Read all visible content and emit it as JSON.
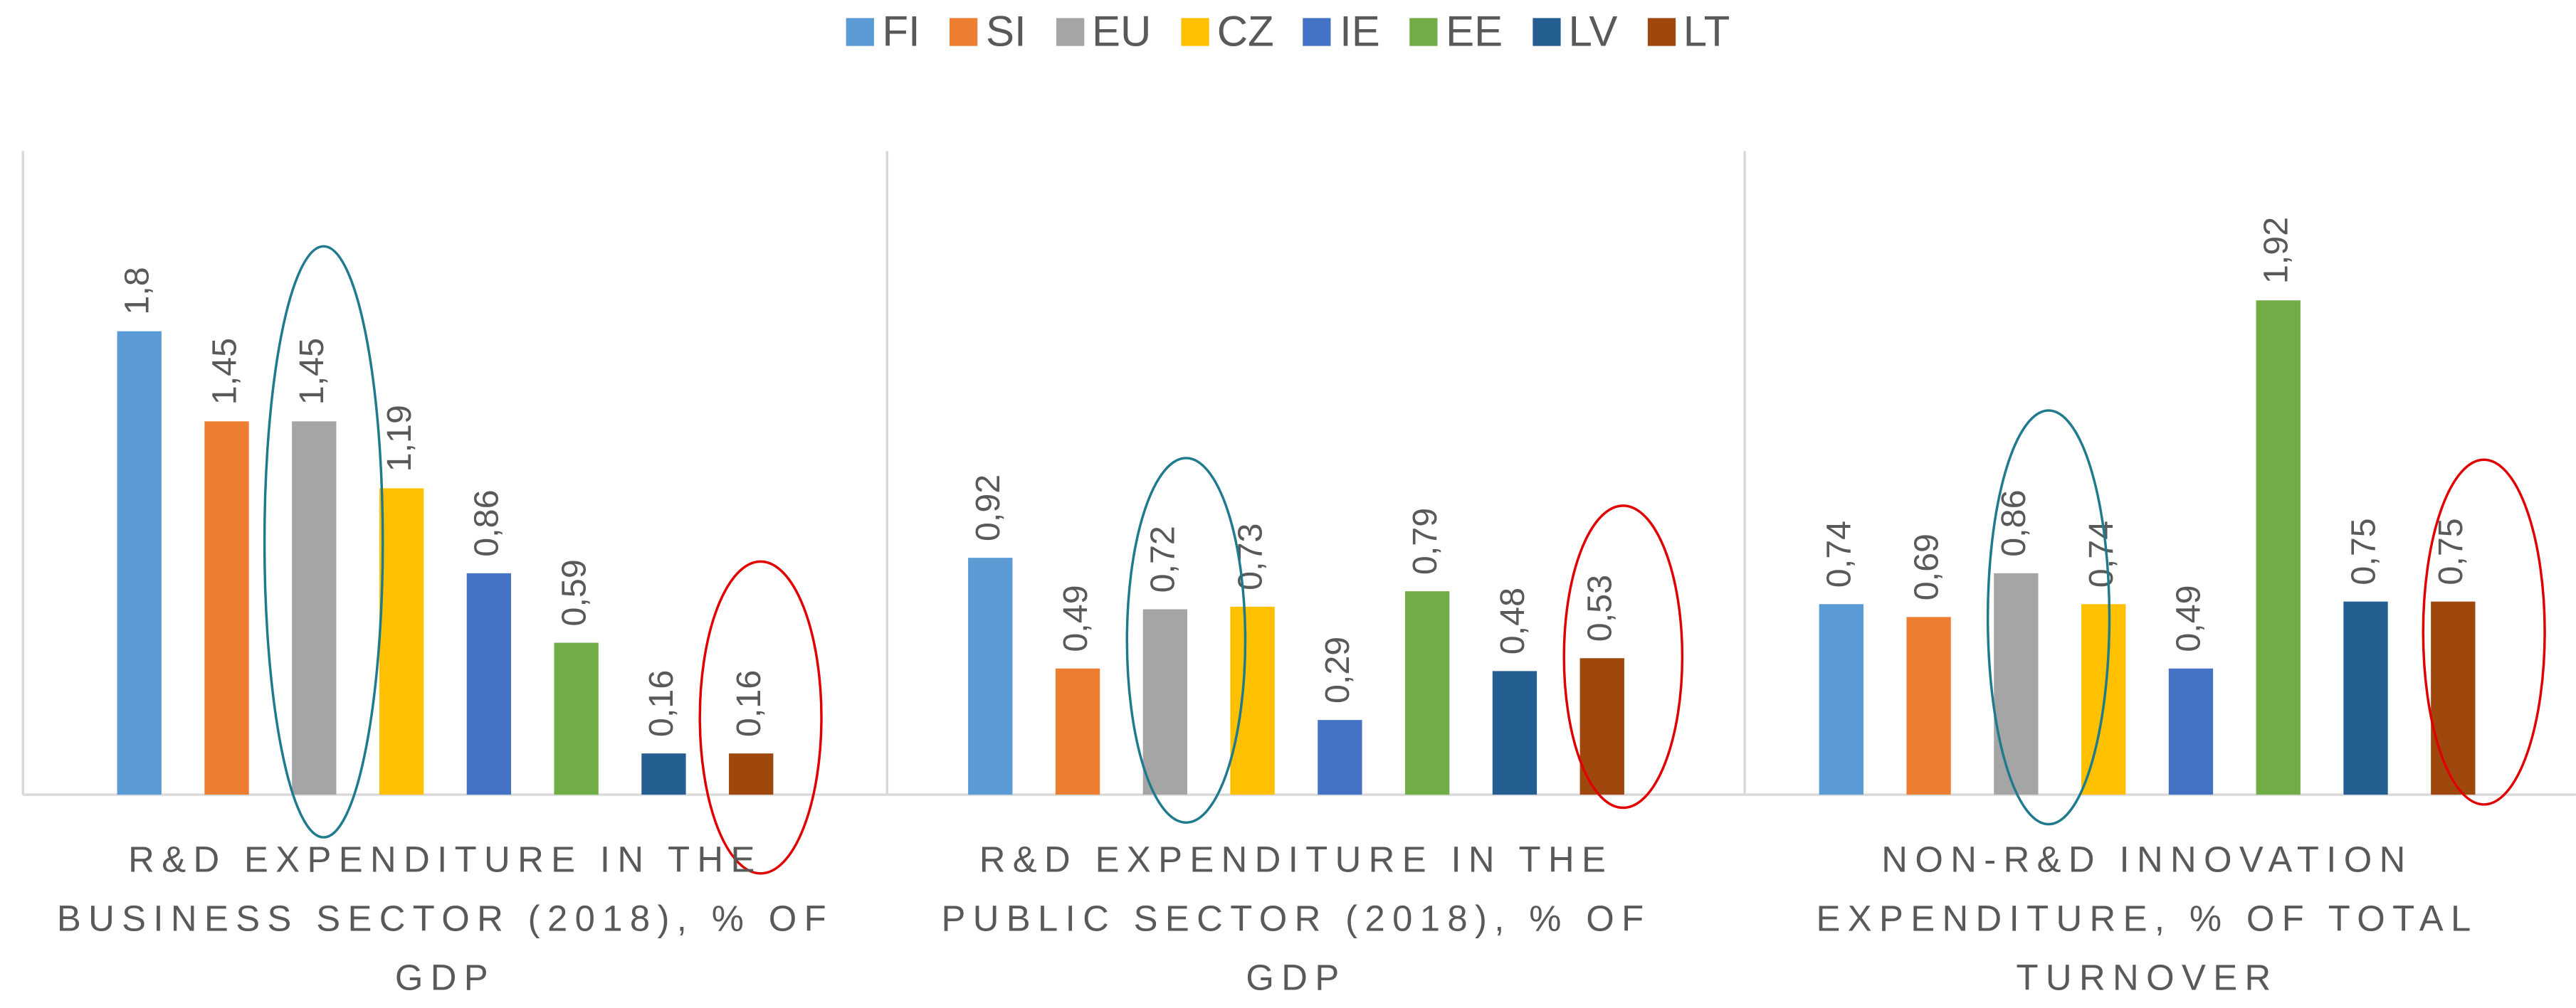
{
  "chart_data": {
    "type": "bar",
    "categories": [
      "R&D EXPENDITURE IN THE BUSINESS SECTOR (2018), % OF GDP",
      "R&D EXPENDITURE IN THE PUBLIC SECTOR (2018), % OF GDP",
      "NON-R&D INNOVATION EXPENDITURE, % OF TOTAL TURNOVER"
    ],
    "series": [
      {
        "name": "FI",
        "color": "#5b9bd5",
        "values": [
          1.8,
          0.92,
          0.74
        ],
        "value_labels": [
          "1,8",
          "0,92",
          "0,74"
        ]
      },
      {
        "name": "SI",
        "color": "#ed7d31",
        "values": [
          1.45,
          0.49,
          0.69
        ],
        "value_labels": [
          "1,45",
          "0,49",
          "0,69"
        ]
      },
      {
        "name": "EU",
        "color": "#a5a5a5",
        "values": [
          1.45,
          0.72,
          0.86
        ],
        "value_labels": [
          "1,45",
          "0,72",
          "0,86"
        ]
      },
      {
        "name": "CZ",
        "color": "#ffc000",
        "values": [
          1.19,
          0.73,
          0.74
        ],
        "value_labels": [
          "1,19",
          "0,73",
          "0,74"
        ]
      },
      {
        "name": "IE",
        "color": "#4472c4",
        "values": [
          0.86,
          0.29,
          0.49
        ],
        "value_labels": [
          "0,86",
          "0,29",
          "0,49"
        ]
      },
      {
        "name": "EE",
        "color": "#70ad47",
        "values": [
          0.59,
          0.79,
          1.92
        ],
        "value_labels": [
          "0,59",
          "0,79",
          "1,92"
        ]
      },
      {
        "name": "LV",
        "color": "#255e91",
        "values": [
          0.16,
          0.48,
          0.75
        ],
        "value_labels": [
          "0,16",
          "0,48",
          "0,75"
        ]
      },
      {
        "name": "LT",
        "color": "#9e480e",
        "values": [
          0.16,
          0.53,
          0.75
        ],
        "value_labels": [
          "0,16",
          "0,53",
          "0,75"
        ]
      }
    ],
    "ylim": [
      0,
      2.5
    ],
    "legend": "top"
  }
}
